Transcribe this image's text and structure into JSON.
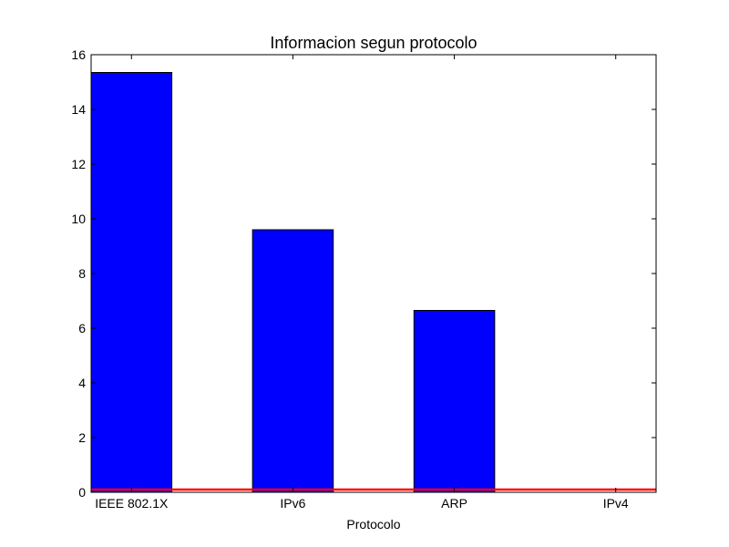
{
  "chart_data": {
    "type": "bar",
    "title": "Informacion segun protocolo",
    "xlabel": "Protocolo",
    "ylabel": "",
    "categories": [
      "IEEE 802.1X",
      "IPv6",
      "ARP",
      "IPv4"
    ],
    "values": [
      15.35,
      9.6,
      6.65,
      0
    ],
    "ylim": [
      0,
      16
    ],
    "yticks": [
      0,
      2,
      4,
      6,
      8,
      10,
      12,
      14,
      16
    ],
    "reference_line": 0.1,
    "bar_color": "#0000ff",
    "bar_edge_color": "#000000",
    "reference_line_color": "#ff0000",
    "grid": false,
    "legend": "none"
  }
}
